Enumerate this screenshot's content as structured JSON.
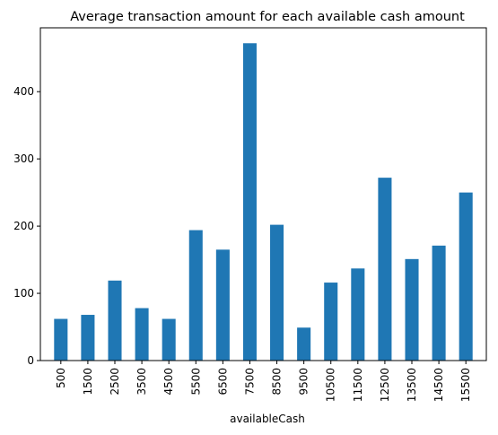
{
  "chart_data": {
    "type": "bar",
    "title": "Average transaction amount for each available cash amount",
    "xlabel": "availableCash",
    "ylabel": "",
    "categories": [
      "500",
      "1500",
      "2500",
      "3500",
      "4500",
      "5500",
      "6500",
      "7500",
      "8500",
      "9500",
      "10500",
      "11500",
      "12500",
      "13500",
      "14500",
      "15500"
    ],
    "values": [
      62,
      68,
      119,
      78,
      62,
      194,
      165,
      472,
      202,
      49,
      116,
      137,
      272,
      151,
      171,
      250
    ],
    "ylim": [
      0,
      495
    ],
    "yticks": [
      0,
      100,
      200,
      300,
      400
    ],
    "bar_color": "#1f77b4",
    "grid": false,
    "legend": "none"
  }
}
